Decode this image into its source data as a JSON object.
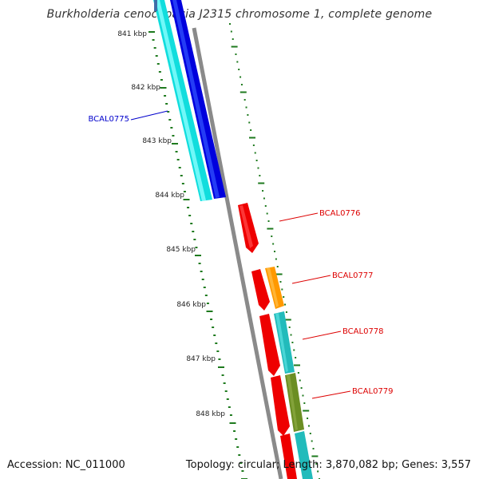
{
  "header": {
    "title": "Burkholderia cenocepacia J2315 chromosome 1, complete genome"
  },
  "footer": {
    "accession": "Accession: NC_011000",
    "summary": "Topology: circular; Length: 3,870,082 bp; Genes: 3,557"
  },
  "ticks": [
    "841 kbp",
    "842 kbp",
    "843 kbp",
    "844 kbp",
    "845 kbp",
    "846 kbp",
    "847 kbp",
    "848 kbp"
  ],
  "genes": {
    "bcal0775": "BCAL0775",
    "bcal0776": "BCAL0776",
    "bcal0777": "BCAL0777",
    "bcal0778": "BCAL0778",
    "bcal0779": "BCAL0779"
  },
  "colors": {
    "backbone": "#8a8a8a",
    "tick": "#1e7a1e",
    "cds": "#ee0000",
    "blue_feature": "#0000dd",
    "cyan_feature": "#11dddd",
    "orange_feature": "#ff9900",
    "teal_feature": "#22bbbb",
    "olive_feature": "#6b8e23",
    "label_blue": "#0000cc",
    "label_red": "#dd0000"
  }
}
